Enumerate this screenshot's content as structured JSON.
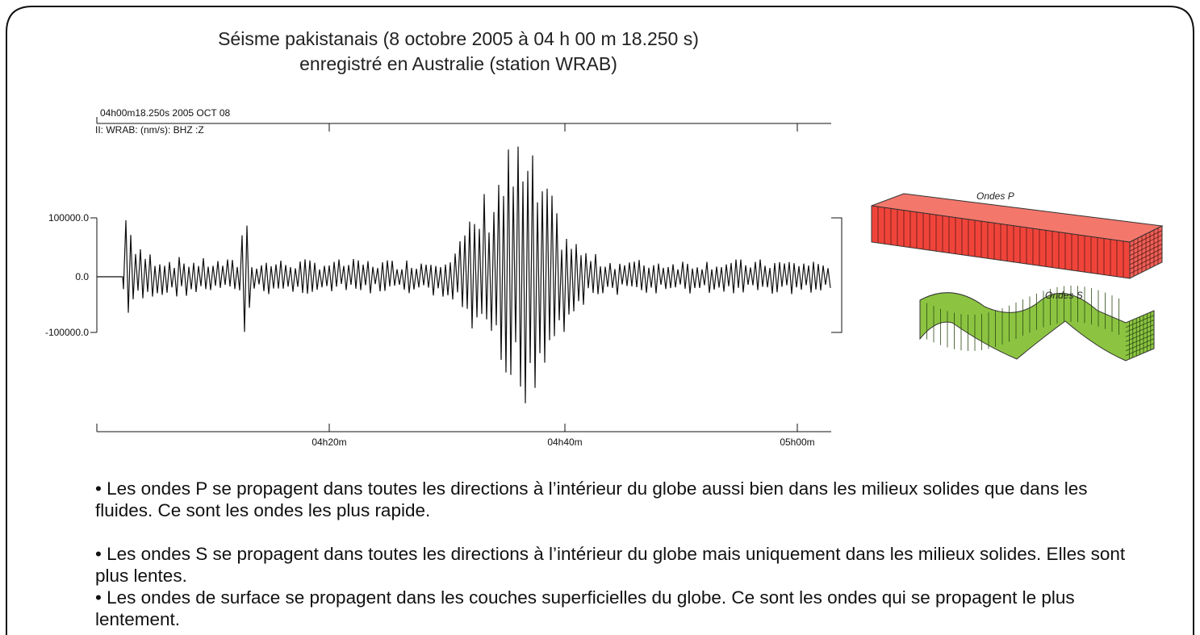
{
  "title": {
    "line1": "Séisme pakistanais (8 octobre 2005 à 04 h 00 m 18.250 s)",
    "line2": "enregistré en Australie (station WRAB)"
  },
  "seismogram": {
    "header1": "04h00m18.250s  2005 OCT 08",
    "header2": "II: WRAB: (nm/s): BHZ :Z",
    "y_labels": [
      "100000.0",
      "0.0",
      "-100000.0"
    ],
    "x_labels": [
      "04h20m",
      "04h40m",
      "05h00m"
    ]
  },
  "figure": {
    "label_p": "Ondes P",
    "label_s": "Ondes S"
  },
  "bullets": [
    "• Les ondes P se propagent dans toutes les directions à l’intérieur du globe aussi bien dans les milieux solides que dans les fluides. Ce sont les ondes les plus rapide.",
    "• Les ondes S se propagent dans toutes les directions à l’intérieur du globe mais uniquement dans les milieux solides. Elles sont plus lentes.",
    "• Les ondes de surface se propagent dans les couches superficielles du globe. Ce sont les ondes qui se propagent le plus lentement."
  ]
}
